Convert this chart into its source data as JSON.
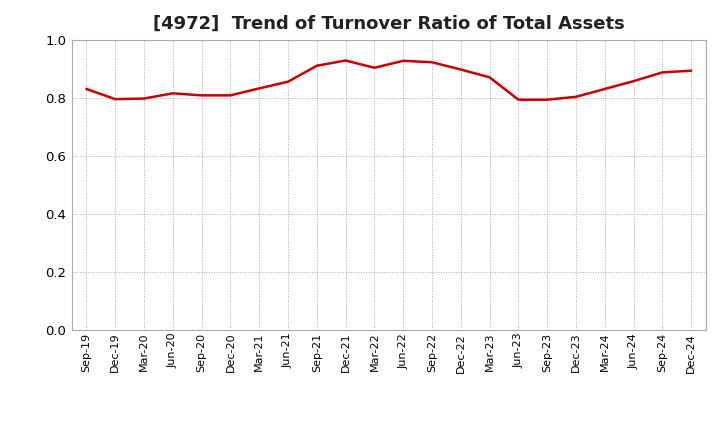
{
  "title": "[4972]  Trend of Turnover Ratio of Total Assets",
  "title_fontsize": 13,
  "line_color": "#cc0000",
  "line_width": 1.8,
  "background_color": "#ffffff",
  "grid_color": "#aaaaaa",
  "ylim": [
    0.0,
    1.0
  ],
  "yticks": [
    0.0,
    0.2,
    0.4,
    0.6,
    0.8,
    1.0
  ],
  "xlabels": [
    "Sep-19",
    "Dec-19",
    "Mar-20",
    "Jun-20",
    "Sep-20",
    "Dec-20",
    "Mar-21",
    "Jun-21",
    "Sep-21",
    "Dec-21",
    "Mar-22",
    "Jun-22",
    "Sep-22",
    "Dec-22",
    "Mar-23",
    "Jun-23",
    "Sep-23",
    "Dec-23",
    "Mar-24",
    "Jun-24",
    "Sep-24",
    "Dec-24"
  ],
  "values": [
    0.83,
    0.795,
    0.797,
    0.815,
    0.808,
    0.808,
    0.832,
    0.855,
    0.91,
    0.928,
    0.903,
    0.927,
    0.922,
    0.897,
    0.87,
    0.793,
    0.793,
    0.803,
    0.83,
    0.857,
    0.887,
    0.893
  ]
}
